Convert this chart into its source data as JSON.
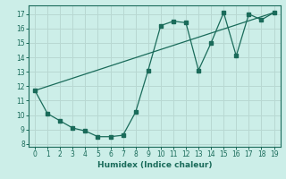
{
  "title": "",
  "xlabel": "Humidex (Indice chaleur)",
  "ylabel": "",
  "background_color": "#cceee8",
  "grid_color": "#b8d8d2",
  "line_color": "#1a6b5a",
  "xlim": [
    -0.5,
    19.5
  ],
  "ylim": [
    7.8,
    17.6
  ],
  "xticks": [
    0,
    1,
    2,
    3,
    4,
    5,
    6,
    7,
    8,
    9,
    10,
    11,
    12,
    13,
    14,
    15,
    16,
    17,
    18,
    19
  ],
  "yticks": [
    8,
    9,
    10,
    11,
    12,
    13,
    14,
    15,
    16,
    17
  ],
  "line1_x": [
    0,
    1,
    2,
    3,
    4,
    5,
    6,
    7,
    8,
    9,
    10,
    11,
    12,
    13,
    14,
    15,
    16,
    17,
    18,
    19
  ],
  "line1_y": [
    11.7,
    10.1,
    9.6,
    9.1,
    8.9,
    8.5,
    8.5,
    8.6,
    10.2,
    13.1,
    16.2,
    16.5,
    16.4,
    13.1,
    15.0,
    17.1,
    14.1,
    17.0,
    16.6,
    17.1
  ],
  "line2_x": [
    0,
    19
  ],
  "line2_y": [
    11.7,
    17.1
  ]
}
